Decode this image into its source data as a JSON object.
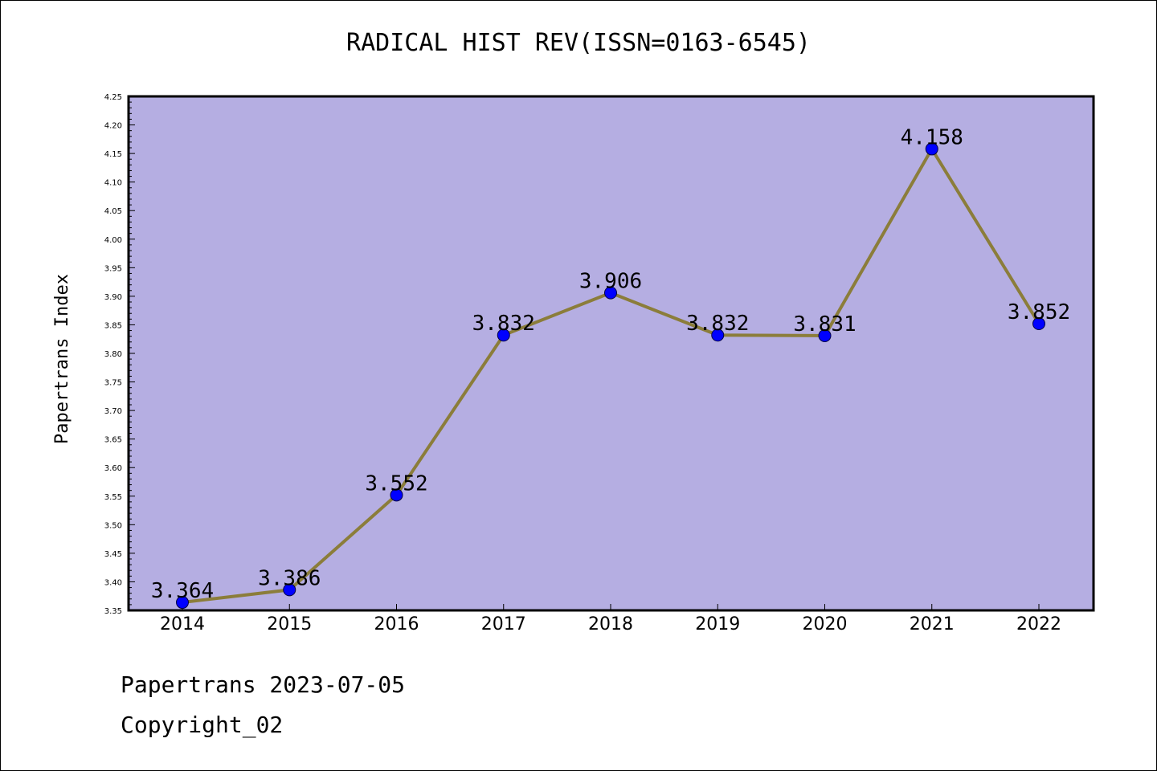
{
  "chart_data": {
    "type": "line",
    "title": "RADICAL HIST REV(ISSN=0163-6545)",
    "ylabel": "Papertrans Index",
    "xlabel": "",
    "categories": [
      "2014",
      "2015",
      "2016",
      "2017",
      "2018",
      "2019",
      "2020",
      "2021",
      "2022"
    ],
    "values": [
      3.364,
      3.386,
      3.552,
      3.832,
      3.906,
      3.832,
      3.831,
      4.158,
      3.852
    ],
    "data_labels": [
      "3.364",
      "3.386",
      "3.552",
      "3.832",
      "3.906",
      "3.832",
      "3.831",
      "4.158",
      "3.852"
    ],
    "ylim": [
      3.35,
      4.25
    ],
    "yticks": [
      "3.35",
      "3.40",
      "3.45",
      "3.50",
      "3.55",
      "3.60",
      "3.65",
      "3.70",
      "3.75",
      "3.80",
      "3.85",
      "3.90",
      "3.95",
      "4.00",
      "4.05",
      "4.10",
      "4.15",
      "4.20",
      "4.25"
    ],
    "grid": false,
    "colors": {
      "plot_background": "#b5aee2",
      "line": "#8b7d3a",
      "marker": "#0000ff"
    }
  },
  "footer": {
    "line1": "Papertrans 2023-07-05",
    "line2": "Copyright_02"
  }
}
